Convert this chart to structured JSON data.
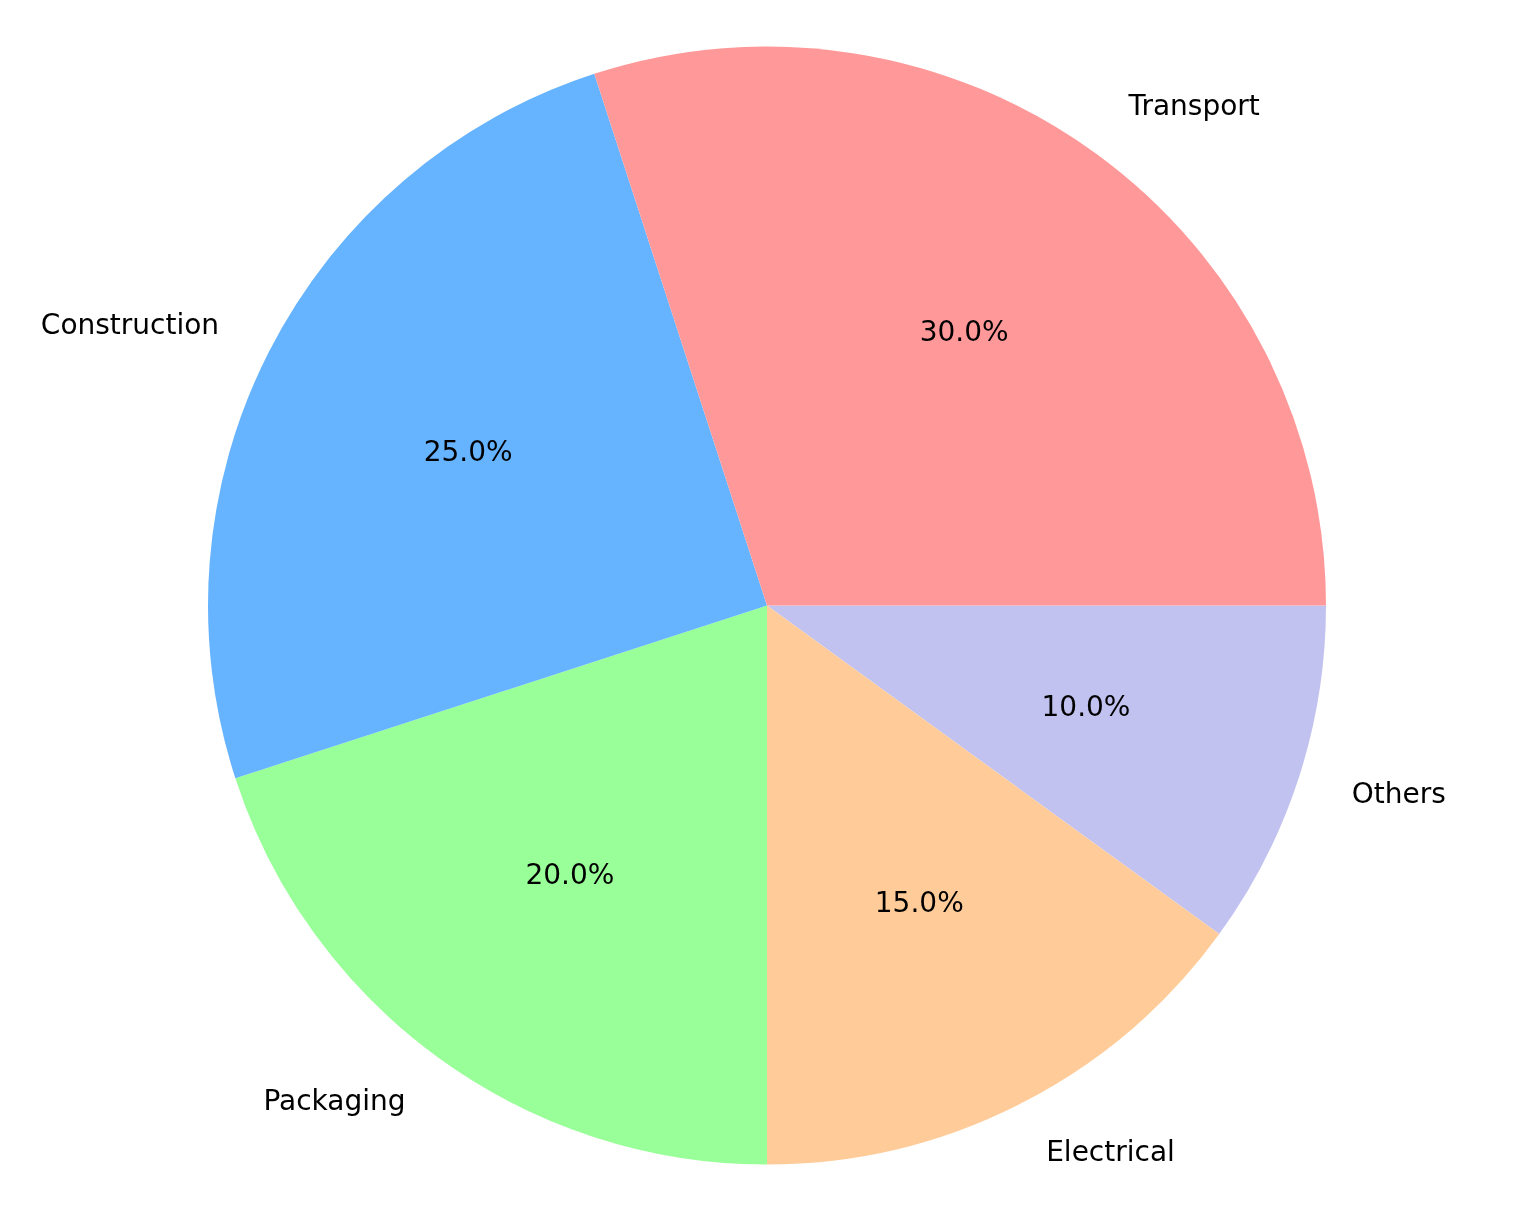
{
  "chart_data": {
    "type": "pie",
    "categories": [
      "Transport",
      "Construction",
      "Packaging",
      "Electrical",
      "Others"
    ],
    "values": [
      30,
      25,
      20,
      15,
      10
    ],
    "colors": [
      "#ff9999",
      "#66b3ff",
      "#99ff99",
      "#ffcc99",
      "#c2c2f0"
    ],
    "value_labels": [
      "30.0%",
      "25.0%",
      "20.0%",
      "15.0%",
      "10.0%"
    ],
    "legend": false
  }
}
